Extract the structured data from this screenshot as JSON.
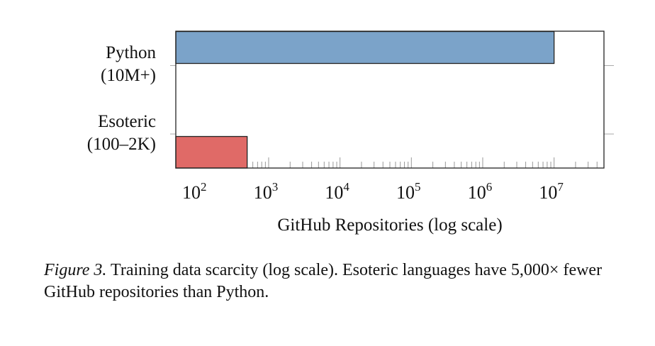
{
  "chart_data": {
    "type": "bar",
    "orientation": "horizontal",
    "categories": [
      {
        "name": "Python",
        "sublabel": "(10M+)"
      },
      {
        "name": "Esoteric",
        "sublabel": "(100–2K)"
      }
    ],
    "values": [
      10000000,
      500
    ],
    "colors": [
      "#7ba3c9",
      "#e06a67"
    ],
    "xlabel": "GitHub Repositories (log scale)",
    "xscale": "log",
    "xlim": [
      50,
      50000000
    ],
    "xticks": [
      100,
      1000,
      10000,
      100000,
      1000000,
      10000000
    ],
    "xtick_labels": [
      {
        "base": "10",
        "exp": "2"
      },
      {
        "base": "10",
        "exp": "3"
      },
      {
        "base": "10",
        "exp": "4"
      },
      {
        "base": "10",
        "exp": "5"
      },
      {
        "base": "10",
        "exp": "6"
      },
      {
        "base": "10",
        "exp": "7"
      }
    ],
    "grid": false,
    "legend": "none"
  },
  "caption": {
    "label": "Figure 3.",
    "text": " Training data scarcity (log scale). Esoteric languages have 5,000× fewer GitHub repositories than Python."
  }
}
